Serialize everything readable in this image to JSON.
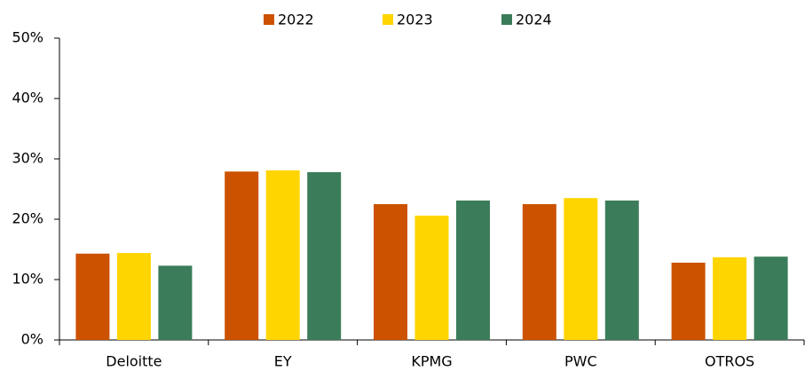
{
  "chart_data": {
    "type": "bar",
    "categories": [
      "Deloitte",
      "EY",
      "KPMG",
      "PWC",
      "OTROS"
    ],
    "series": [
      {
        "name": "2022",
        "color": "#cc5200",
        "values": [
          14.3,
          27.9,
          22.5,
          22.5,
          12.8
        ]
      },
      {
        "name": "2023",
        "color": "#ffd500",
        "values": [
          14.4,
          28.1,
          20.6,
          23.5,
          13.7
        ]
      },
      {
        "name": "2024",
        "color": "#3b7d5a",
        "values": [
          12.3,
          27.8,
          23.1,
          23.1,
          13.8
        ]
      }
    ],
    "ylim": [
      0,
      50
    ],
    "yticks": [
      {
        "value": 0,
        "label": "0%"
      },
      {
        "value": 10,
        "label": "10%"
      },
      {
        "value": 20,
        "label": "20%"
      },
      {
        "value": 30,
        "label": "30%"
      },
      {
        "value": 40,
        "label": "40%"
      },
      {
        "value": 50,
        "label": "50%"
      }
    ],
    "grid": false
  }
}
